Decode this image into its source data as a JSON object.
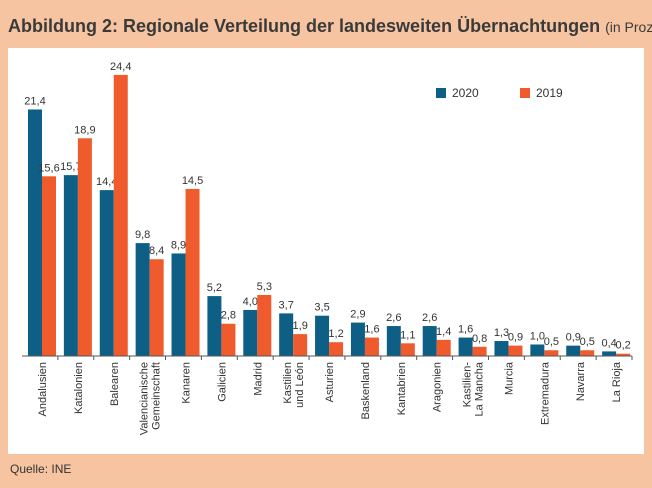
{
  "header": {
    "title": "Abbildung 2: Regionale Verteilung der landesweiten Übernachtungen",
    "subtitle": "(in Prozent)"
  },
  "footer": {
    "source": "Quelle: INE"
  },
  "colors": {
    "background": "#f7c4a1",
    "panel": "#ffffff",
    "s2020": "#0e5f86",
    "s2019": "#ef5b2c",
    "axis": "#555555",
    "text": "#333333"
  },
  "chart_data": {
    "type": "bar",
    "title": "Abbildung 2: Regionale Verteilung der landesweiten Übernachtungen",
    "subtitle": "(in Prozent)",
    "xlabel": "",
    "ylabel": "",
    "ylim": [
      0,
      25
    ],
    "grid": false,
    "legend_position": "top-right",
    "categories": [
      [
        "Andalusien"
      ],
      [
        "Katalonien"
      ],
      [
        "Balearen"
      ],
      [
        "Valencianische",
        "Gemeinschaft"
      ],
      [
        "Kanaren"
      ],
      [
        "Galicien"
      ],
      [
        "Madrid"
      ],
      [
        "Kastilien",
        "und León"
      ],
      [
        "Asturien"
      ],
      [
        "Baskenland"
      ],
      [
        "Kantabrien"
      ],
      [
        "Aragonien"
      ],
      [
        "Kastilien-",
        "La Mancha"
      ],
      [
        "Murcia"
      ],
      [
        "Extremadura"
      ],
      [
        "Navarra"
      ],
      [
        "La Rioja"
      ]
    ],
    "series": [
      {
        "name": "2020",
        "color": "#0e5f86",
        "values": [
          21.4,
          15.7,
          14.4,
          9.8,
          8.9,
          5.2,
          4.0,
          3.7,
          3.5,
          2.9,
          2.6,
          2.6,
          1.6,
          1.3,
          1.0,
          0.9,
          0.4
        ],
        "labels": [
          "21,4",
          "15,7",
          "14,4",
          "9,8",
          "8,9",
          "5,2",
          "4,0",
          "3,7",
          "3,5",
          "2,9",
          "2,6",
          "2,6",
          "1,6",
          "1,3",
          "1,0",
          "0,9",
          "0,4"
        ]
      },
      {
        "name": "2019",
        "color": "#ef5b2c",
        "values": [
          15.6,
          18.9,
          24.4,
          8.4,
          14.5,
          2.8,
          5.3,
          1.9,
          1.2,
          1.6,
          1.1,
          1.4,
          0.8,
          0.9,
          0.5,
          0.5,
          0.2
        ],
        "labels": [
          "15,6",
          "18,9",
          "24,4",
          "8,4",
          "14,5",
          "2,8",
          "5,3",
          "1,9",
          "1,2",
          "1,6",
          "1,1",
          "1,4",
          "0,8",
          "0,9",
          "0,5",
          "0,5",
          "0,2"
        ]
      }
    ]
  }
}
